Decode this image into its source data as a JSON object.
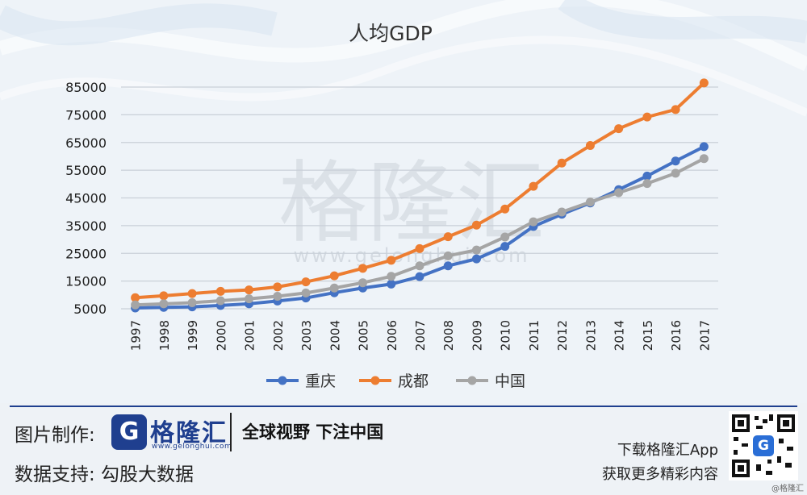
{
  "chart_data": {
    "type": "line",
    "title": "人均GDP",
    "categories": [
      "1997",
      "1998",
      "1999",
      "2000",
      "2001",
      "2002",
      "2003",
      "2004",
      "2005",
      "2006",
      "2007",
      "2008",
      "2009",
      "2010",
      "2011",
      "2012",
      "2013",
      "2014",
      "2015",
      "2016",
      "2017"
    ],
    "yticks": [
      "5000",
      "15000",
      "25000",
      "35000",
      "45000",
      "55000",
      "65000",
      "75000",
      "85000"
    ],
    "ylim": [
      5000,
      85000
    ],
    "grid": true,
    "legend_position": "bottom",
    "series": [
      {
        "name": "重庆",
        "color": "#4472c4",
        "values": [
          5300,
          5500,
          5700,
          6200,
          6800,
          7800,
          8900,
          10800,
          12500,
          13900,
          16600,
          20500,
          23000,
          27500,
          34700,
          39100,
          43200,
          48000,
          52900,
          58300,
          63500
        ]
      },
      {
        "name": "成都",
        "color": "#ed7d31",
        "values": [
          9000,
          9700,
          10500,
          11300,
          11800,
          12900,
          14700,
          16900,
          19600,
          22500,
          26700,
          31000,
          35200,
          41000,
          49200,
          57600,
          63900,
          70000,
          74200,
          76900,
          86500
        ]
      },
      {
        "name": "中国",
        "color": "#a5a5a5",
        "values": [
          6400,
          6800,
          7200,
          7900,
          8600,
          9500,
          10700,
          12500,
          14400,
          16700,
          20500,
          24100,
          26200,
          30900,
          36400,
          39900,
          43500,
          46900,
          50200,
          53900,
          59200
        ]
      }
    ]
  },
  "watermark": {
    "text": "格隆汇",
    "url": "www.gelonghui.com"
  },
  "footer": {
    "credit_label": "图片制作:",
    "brand_name": "格隆汇",
    "brand_url": "www.gelonghui.com",
    "logo_letter": "G",
    "slogan": "全球视野 下注中国",
    "source_label": "数据支持: 勾股大数据",
    "app_line1": "下载格隆汇App",
    "app_line2": "获取更多精彩内容",
    "corner_mark": "@格隆汇"
  },
  "colors": {
    "brand": "#1f3f8f",
    "grid": "#c9d0d8",
    "axis_text": "#222222"
  }
}
